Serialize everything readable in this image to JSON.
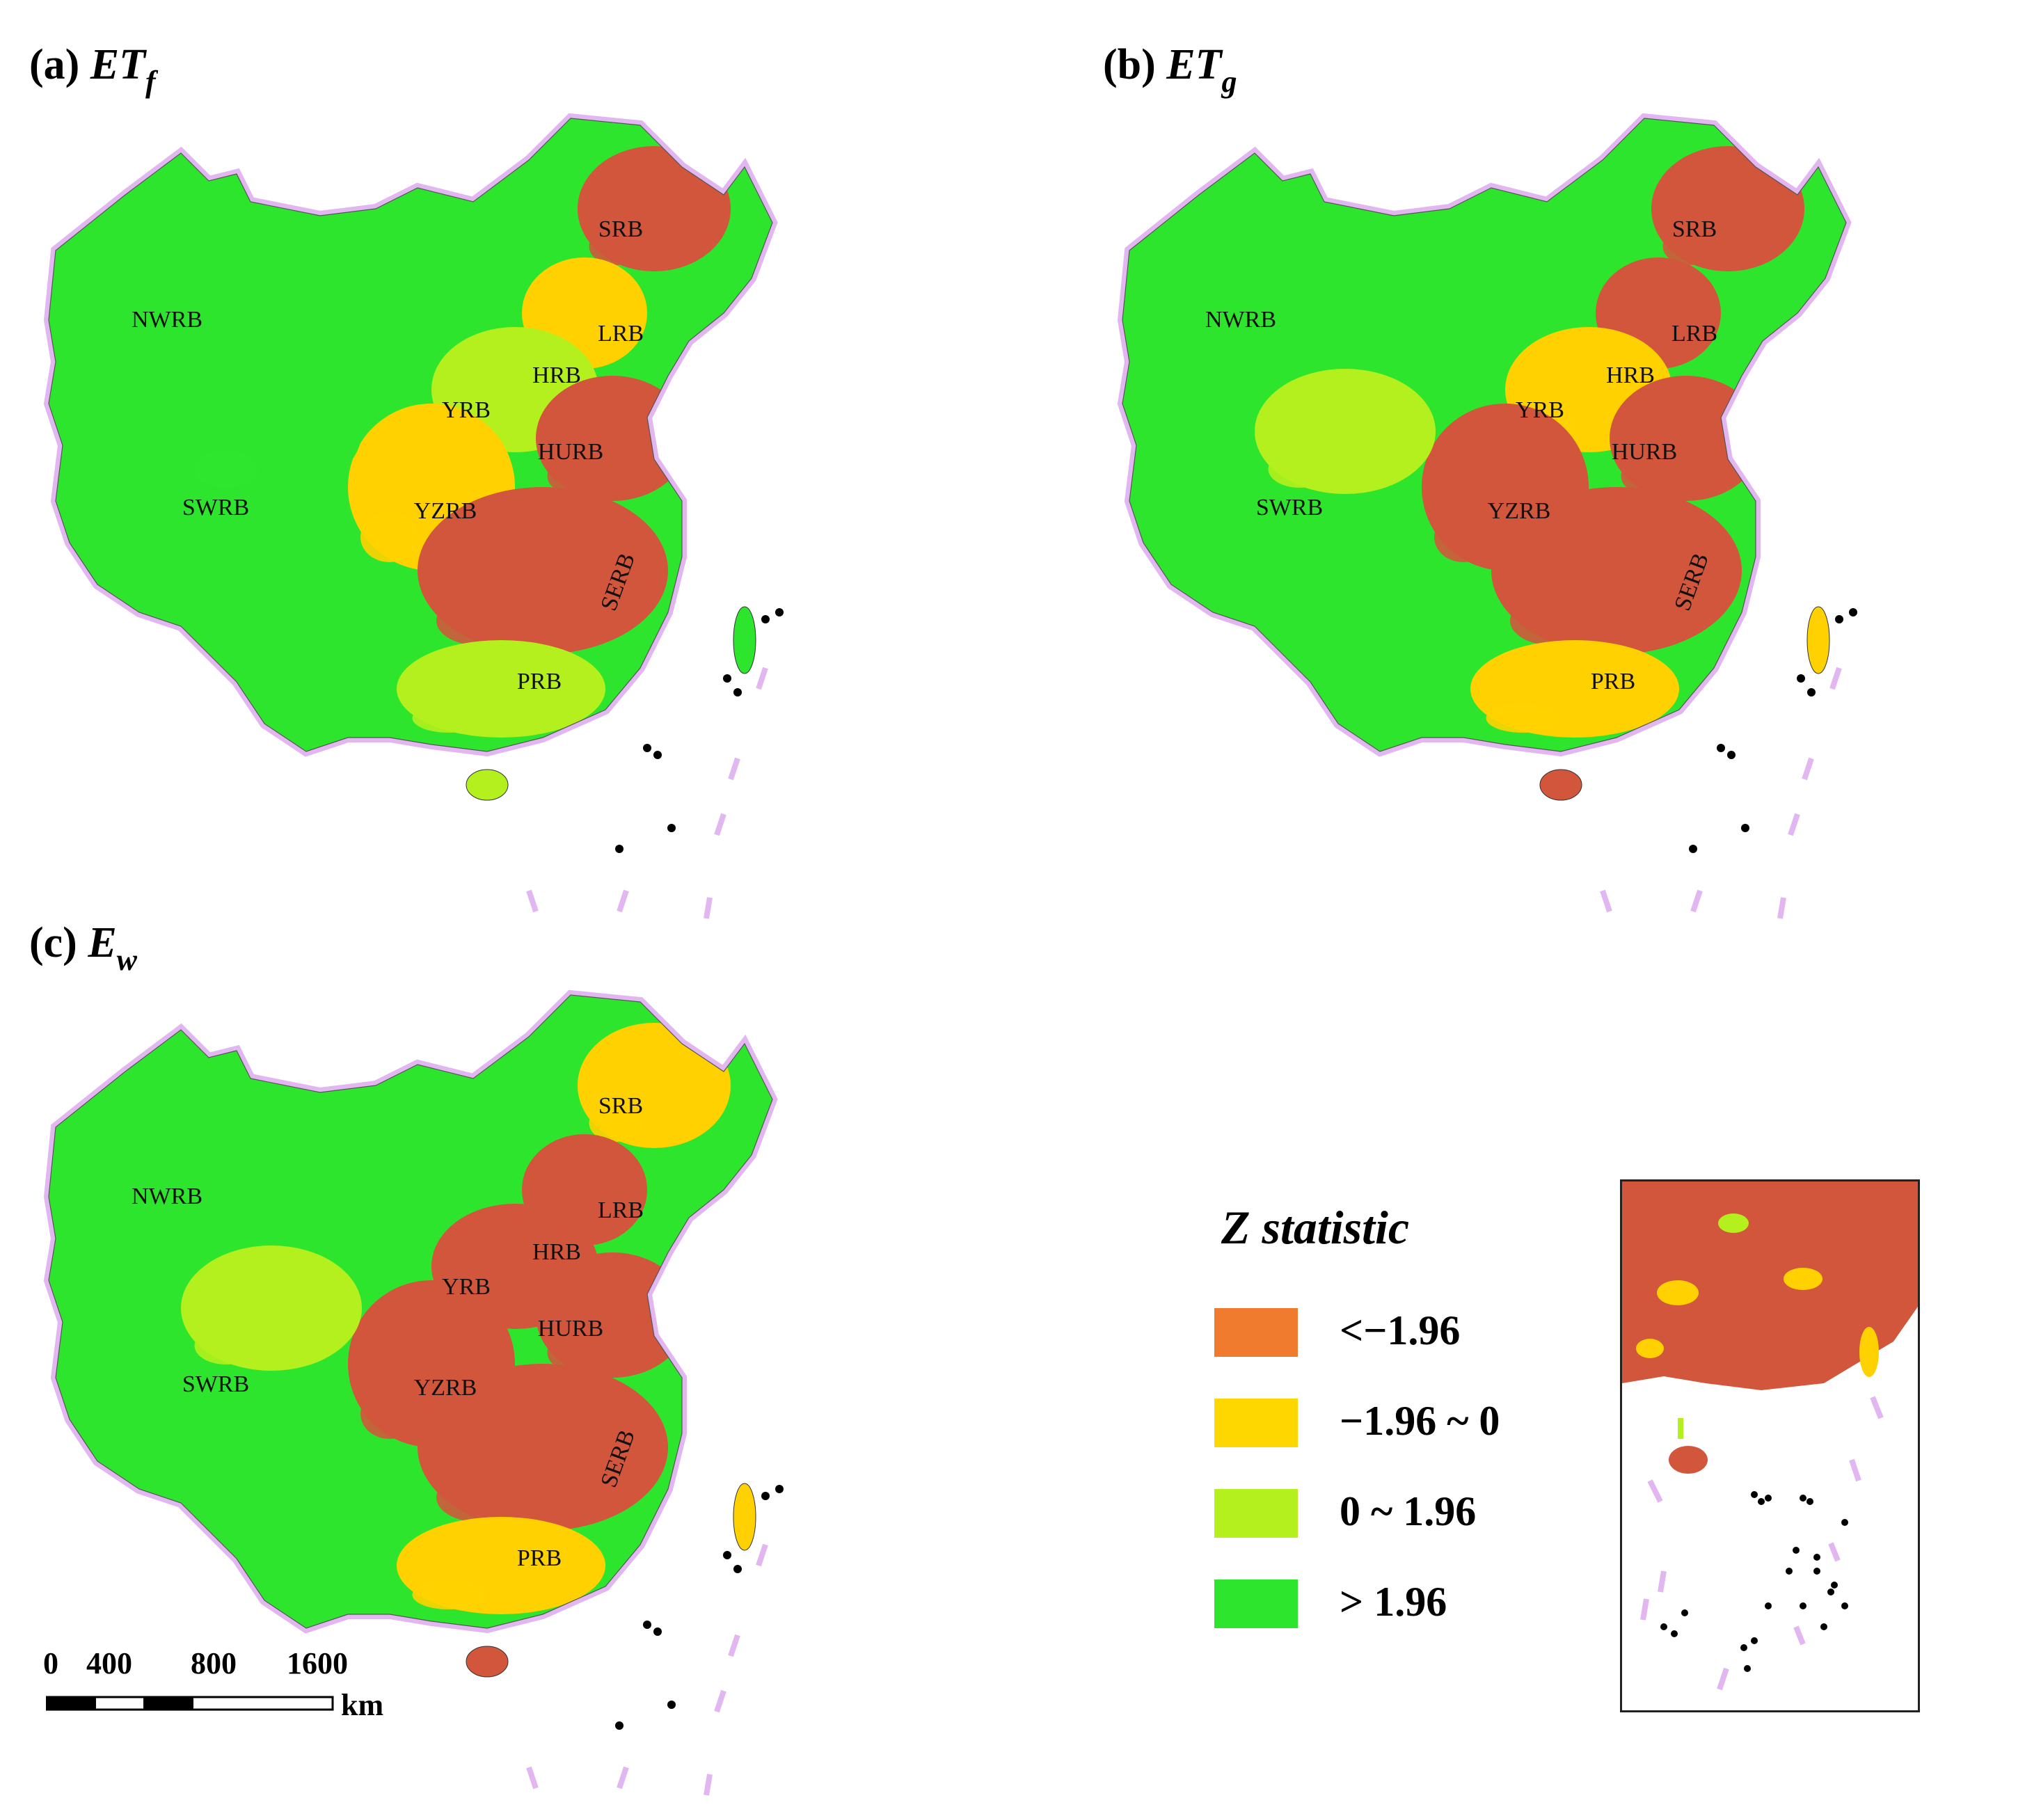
{
  "panels": [
    {
      "id": "a",
      "title_prefix": "(a)",
      "title_main": "ET",
      "title_sub": "f",
      "base": "#2ee52e",
      "patches": [
        "#d1563c",
        "#ffd100",
        "#b4f01e",
        "#d1563c",
        "#ffd100",
        "#2ee52e",
        "#d1563c",
        "#b4f01e"
      ],
      "taiwan": "#2ee52e",
      "hainan": "#b4f01e"
    },
    {
      "id": "b",
      "title_prefix": "(b)",
      "title_main": "ET",
      "title_sub": "g",
      "base": "#2ee52e",
      "patches": [
        "#d1563c",
        "#d1563c",
        "#ffd100",
        "#d1563c",
        "#d1563c",
        "#b4f01e",
        "#d1563c",
        "#ffd100"
      ],
      "taiwan": "#ffd100",
      "hainan": "#d1563c"
    },
    {
      "id": "c",
      "title_prefix": "(c)",
      "title_main": "E",
      "title_sub": "w",
      "base": "#2ee52e",
      "patches": [
        "#ffd100",
        "#d1563c",
        "#d1563c",
        "#d1563c",
        "#d1563c",
        "#b4f01e",
        "#d1563c",
        "#ffd100"
      ],
      "taiwan": "#ffd100",
      "hainan": "#d1563c"
    }
  ],
  "basins": [
    "SRB",
    "LRB",
    "NWRB",
    "HRB",
    "YRB",
    "HURB",
    "SWRB",
    "YZRB",
    "SERB",
    "PRB"
  ],
  "legend": {
    "title": "Z statistic",
    "items": [
      {
        "label": "<−1.96",
        "color": "#f07b2e"
      },
      {
        "label": "−1.96 ~ 0",
        "color": "#ffd700"
      },
      {
        "label": "0 ~ 1.96",
        "color": "#b4f01e"
      },
      {
        "label": "> 1.96",
        "color": "#2ee52e"
      }
    ]
  },
  "scalebar": {
    "ticks": [
      "0",
      "400",
      "800",
      "1600"
    ],
    "unit": "km"
  },
  "colors": {
    "border": "#e2b6f0",
    "dots": "#000000",
    "inset_base": "#d1563c"
  }
}
